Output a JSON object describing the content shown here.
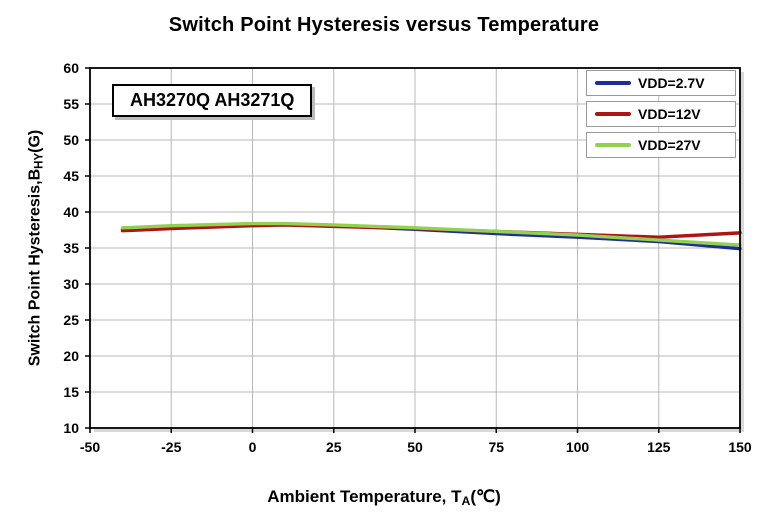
{
  "page": {
    "background": "#ffffff"
  },
  "chart_data": {
    "type": "line",
    "title": "Switch Point Hysteresis versus Temperature",
    "annotation": "AH3270Q AH3271Q",
    "xlabel_parts": {
      "main": "Ambient  Temperature, T",
      "sub": "A",
      "unit": "(℃)"
    },
    "ylabel_parts": {
      "main": "Switch Point Hysteresis,B",
      "sub": "HY",
      "unit": "(G)"
    },
    "xlim": [
      -50,
      150
    ],
    "ylim": [
      10,
      60
    ],
    "xticks": [
      -50,
      -25,
      0,
      25,
      50,
      75,
      100,
      125,
      150
    ],
    "yticks": [
      10,
      15,
      20,
      25,
      30,
      35,
      40,
      45,
      50,
      55,
      60
    ],
    "grid": true,
    "grid_color": "#b8b8b8",
    "border_color": "#000000",
    "legend_position": "top-right",
    "x": [
      -40,
      -25,
      0,
      10,
      25,
      50,
      75,
      100,
      125,
      150
    ],
    "series": [
      {
        "name": "VDD=2.7V",
        "color": "#1f2d9b",
        "values": [
          37.6,
          37.9,
          38.2,
          38.2,
          38.1,
          37.6,
          37.0,
          36.5,
          35.9,
          34.9
        ]
      },
      {
        "name": "VDD=12V",
        "color": "#b01313",
        "values": [
          37.4,
          37.7,
          38.1,
          38.2,
          38.0,
          37.7,
          37.3,
          36.9,
          36.5,
          37.1
        ]
      },
      {
        "name": "VDD=27V",
        "color": "#92d050",
        "values": [
          37.8,
          38.1,
          38.4,
          38.4,
          38.2,
          37.8,
          37.3,
          36.8,
          36.1,
          35.4
        ]
      }
    ]
  }
}
